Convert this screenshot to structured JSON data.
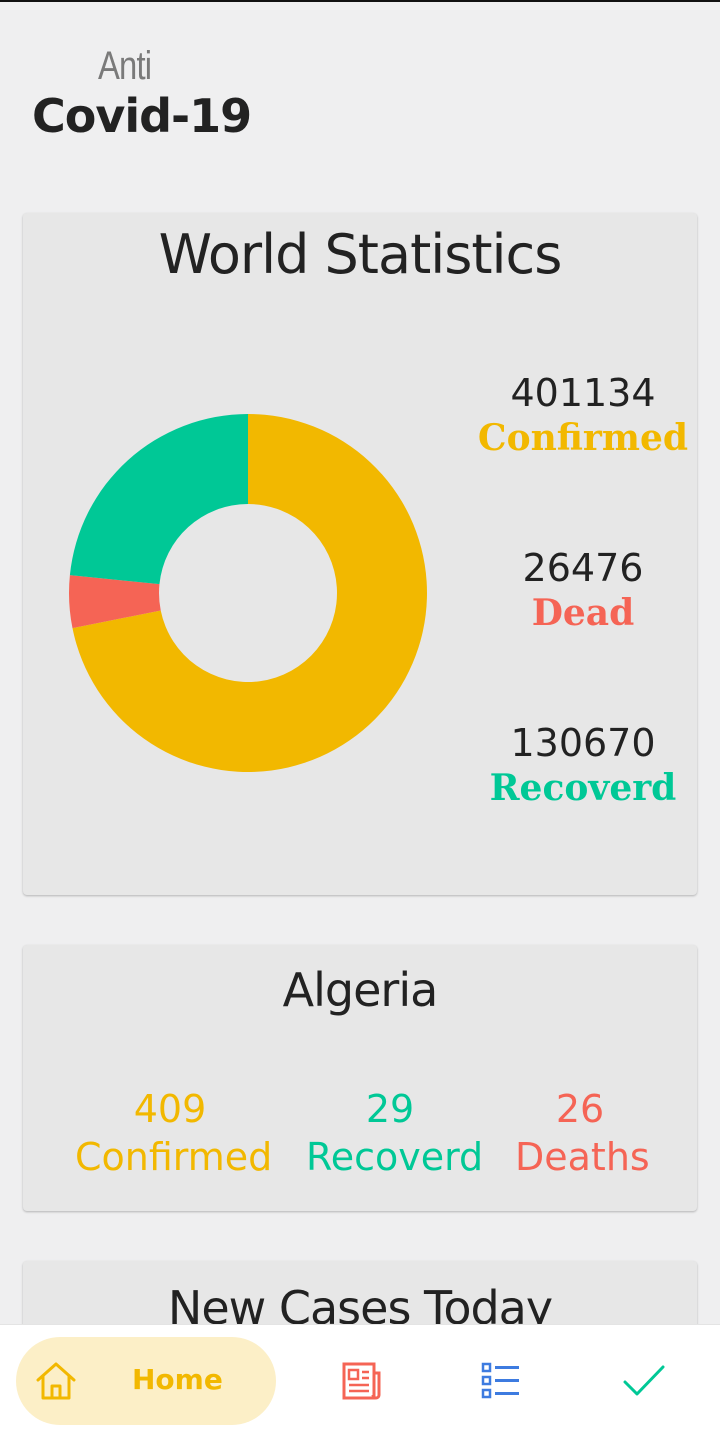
{
  "header": {
    "subtitle": "Anti",
    "title": "Covid-19"
  },
  "world": {
    "title": "World Statistics",
    "confirmed": {
      "value": "401134",
      "label": "Confirmed",
      "color": "#f2b800"
    },
    "dead": {
      "value": "26476",
      "label": "Dead",
      "color": "#f56455"
    },
    "recovered": {
      "value": "130670",
      "label": "Recoverd",
      "color": "#00c896"
    }
  },
  "chart_data": {
    "type": "pie",
    "categories": [
      "Confirmed",
      "Dead",
      "Recoverd"
    ],
    "values": [
      401134,
      26476,
      130670
    ],
    "colors": [
      "#f2b800",
      "#f56455",
      "#00c896"
    ]
  },
  "algeria": {
    "title": "Algeria",
    "confirmed": {
      "value": "409",
      "label": "Confirmed"
    },
    "recovered": {
      "value": "29",
      "label": "Recoverd"
    },
    "deaths": {
      "value": "26",
      "label": "Deaths"
    }
  },
  "new_cases": {
    "title": "New Cases Today"
  },
  "nav": {
    "home_label": "Home",
    "icons": [
      "home-icon",
      "news-icon",
      "list-icon",
      "check-icon"
    ],
    "colors": {
      "home": "#f2b800",
      "news": "#f56455",
      "list": "#3d7be0",
      "check": "#00c896"
    }
  }
}
